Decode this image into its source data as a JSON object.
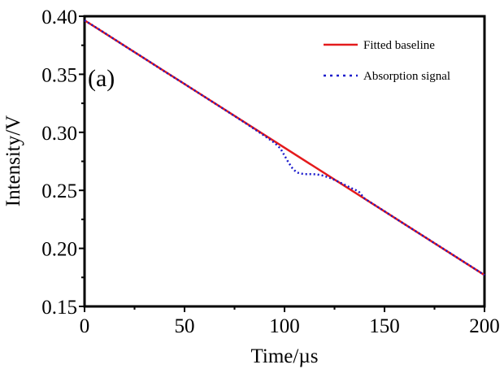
{
  "chart_data": {
    "type": "line",
    "title": "",
    "panel_label": "(a)",
    "xlabel": "Time/µs",
    "ylabel": "Intensity/V",
    "xlim": [
      0,
      200
    ],
    "ylim": [
      0.15,
      0.4
    ],
    "xticks": [
      0,
      50,
      100,
      150,
      200
    ],
    "xtick_labels": [
      "0",
      "50",
      "100",
      "150",
      "200"
    ],
    "yticks": [
      0.15,
      0.2,
      0.25,
      0.3,
      0.35,
      0.4
    ],
    "ytick_labels": [
      "0.15",
      "0.20",
      "0.25",
      "0.30",
      "0.35",
      "0.40"
    ],
    "grid": false,
    "legend_position": "top-right",
    "series": [
      {
        "name": "Fitted baseline",
        "color": "#e41a1c",
        "style": "solid",
        "x": [
          0,
          200
        ],
        "y": [
          0.3965,
          0.177
        ]
      },
      {
        "name": "Absorption signal",
        "color": "#1a1acc",
        "style": "dotted",
        "x": [
          0,
          10,
          20,
          30,
          40,
          50,
          60,
          70,
          80,
          90,
          95,
          98,
          100,
          102,
          104,
          106,
          108,
          110,
          113,
          116,
          119,
          122,
          125,
          128,
          131,
          134,
          137,
          140,
          145,
          150,
          160,
          170,
          180,
          190,
          200
        ],
        "y": [
          0.3965,
          0.3857,
          0.3745,
          0.3636,
          0.3524,
          0.3417,
          0.3306,
          0.3196,
          0.3085,
          0.297,
          0.291,
          0.286,
          0.28,
          0.274,
          0.269,
          0.2655,
          0.2645,
          0.264,
          0.264,
          0.2638,
          0.2628,
          0.2612,
          0.259,
          0.2565,
          0.254,
          0.2515,
          0.2492,
          0.243,
          0.2375,
          0.232,
          0.2209,
          0.21,
          0.199,
          0.188,
          0.177
        ]
      }
    ]
  }
}
